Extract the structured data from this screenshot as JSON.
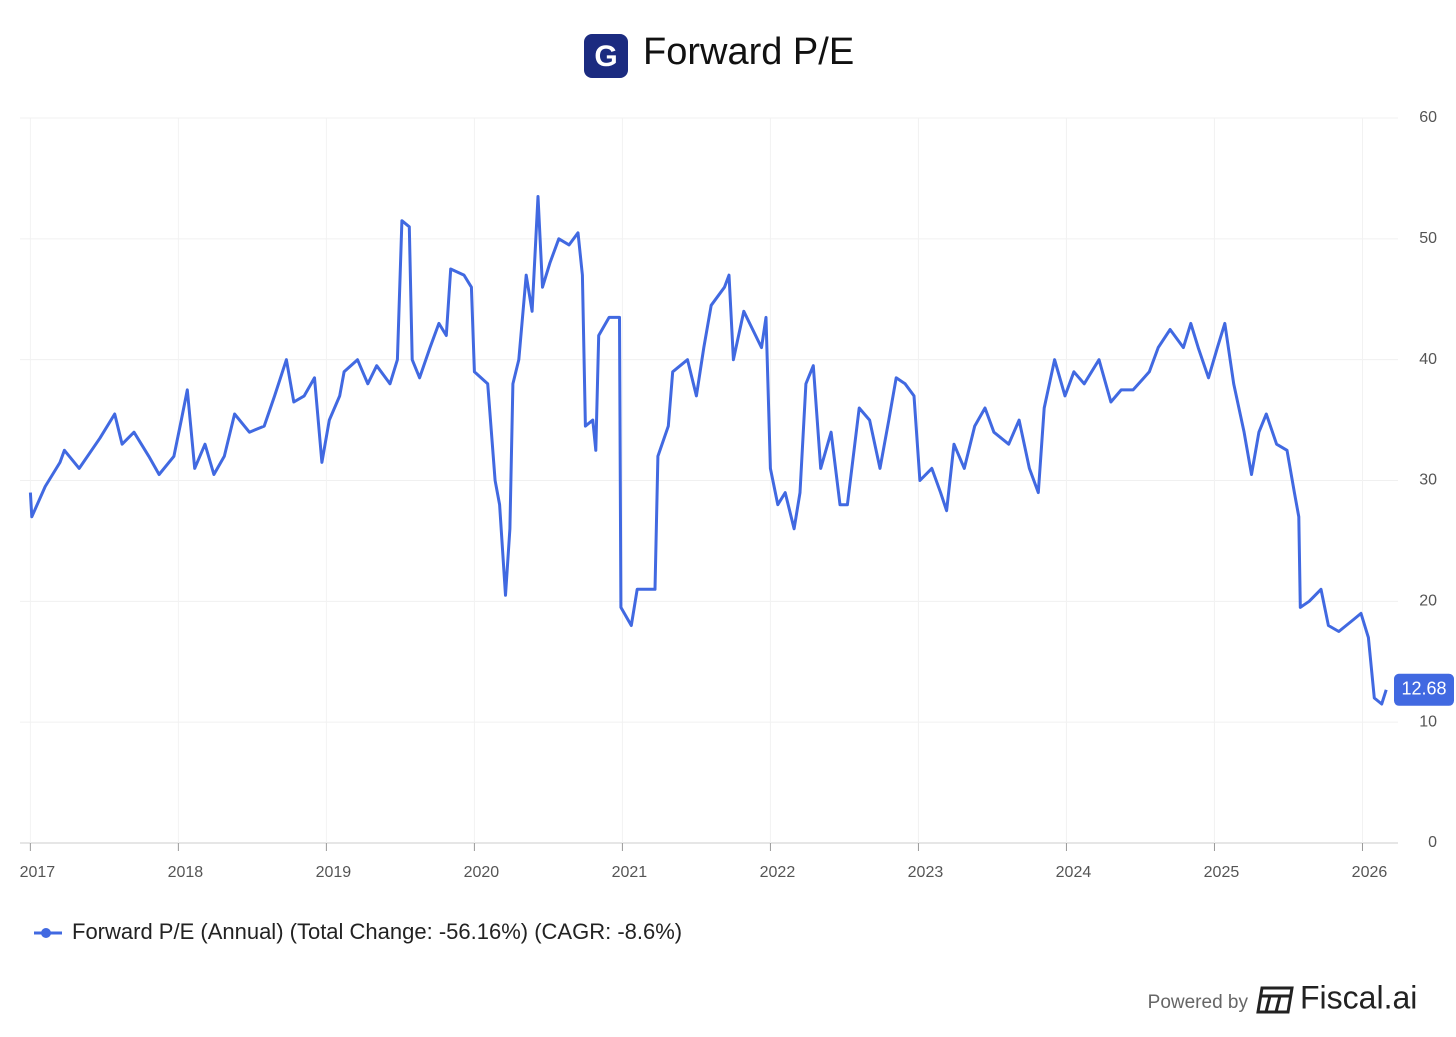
{
  "chart_data": {
    "type": "line",
    "title": "Forward P/E",
    "logo": "G",
    "x": [
      2017.0,
      2017.01,
      2017.1,
      2017.2,
      2017.23,
      2017.33,
      2017.47,
      2017.57,
      2017.62,
      2017.7,
      2017.8,
      2017.87,
      2017.97,
      2018.02,
      2018.06,
      2018.11,
      2018.18,
      2018.24,
      2018.31,
      2018.38,
      2018.48,
      2018.58,
      2018.65,
      2018.73,
      2018.78,
      2018.85,
      2018.92,
      2018.97,
      2019.02,
      2019.09,
      2019.12,
      2019.21,
      2019.28,
      2019.34,
      2019.43,
      2019.48,
      2019.51,
      2019.56,
      2019.58,
      2019.63,
      2019.7,
      2019.76,
      2019.81,
      2019.84,
      2019.93,
      2019.98,
      2020.0,
      2020.09,
      2020.14,
      2020.17,
      2020.21,
      2020.24,
      2020.26,
      2020.3,
      2020.35,
      2020.39,
      2020.43,
      2020.46,
      2020.51,
      2020.57,
      2020.64,
      2020.7,
      2020.73,
      2020.75,
      2020.8,
      2020.82,
      2020.84,
      2020.91,
      2020.98,
      2020.99,
      2021.06,
      2021.1,
      2021.22,
      2021.24,
      2021.31,
      2021.34,
      2021.44,
      2021.5,
      2021.55,
      2021.6,
      2021.69,
      2021.72,
      2021.75,
      2021.82,
      2021.9,
      2021.94,
      2021.97,
      2022.0,
      2022.05,
      2022.1,
      2022.16,
      2022.2,
      2022.24,
      2022.29,
      2022.34,
      2022.41,
      2022.47,
      2022.52,
      2022.6,
      2022.67,
      2022.74,
      2022.8,
      2022.85,
      2022.91,
      2022.97,
      2023.01,
      2023.09,
      2023.15,
      2023.19,
      2023.24,
      2023.31,
      2023.38,
      2023.45,
      2023.51,
      2023.61,
      2023.68,
      2023.75,
      2023.81,
      2023.85,
      2023.92,
      2023.99,
      2024.05,
      2024.12,
      2024.22,
      2024.3,
      2024.37,
      2024.45,
      2024.56,
      2024.62,
      2024.7,
      2024.79,
      2024.84,
      2024.89,
      2024.96,
      2025.02,
      2025.07,
      2025.13,
      2025.2,
      2025.25,
      2025.3,
      2025.35,
      2025.42,
      2025.49,
      2025.54,
      2025.57,
      2025.58,
      2025.64,
      2025.72,
      2025.77,
      2025.84,
      2025.94,
      2025.99,
      2026.04,
      2026.08,
      2026.13,
      2026.16
    ],
    "series": [
      {
        "name": "Forward P/E (Annual) (Total Change: -56.16%) (CAGR: -8.6%)",
        "color": "#4169e1",
        "values": [
          29,
          27,
          29.5,
          31.5,
          32.5,
          31,
          33.5,
          35.5,
          33,
          34,
          32,
          30.5,
          32,
          35,
          37.5,
          31,
          33,
          30.5,
          32,
          35.5,
          34,
          34.5,
          37,
          40,
          36.5,
          37,
          38.5,
          31.5,
          35,
          37,
          39,
          40,
          38,
          39.5,
          38,
          40,
          51.5,
          51,
          40,
          38.5,
          41,
          43,
          42,
          47.5,
          47,
          46,
          39,
          38,
          30,
          28,
          20.5,
          26,
          38,
          40,
          47,
          44,
          53.5,
          46,
          48,
          50,
          49.5,
          50.5,
          47,
          34.5,
          35,
          32.5,
          42,
          43.5,
          43.5,
          19.5,
          18,
          21,
          21,
          32,
          34.5,
          39,
          40,
          37,
          41,
          44.5,
          46,
          47,
          40,
          44,
          42,
          41,
          43.5,
          31,
          28,
          29,
          26,
          29,
          38,
          39.5,
          31,
          34,
          28,
          28,
          36,
          35,
          31,
          35,
          38.5,
          38,
          37,
          30,
          31,
          29,
          27.5,
          33,
          31,
          34.5,
          36,
          34,
          33,
          35,
          31,
          29,
          36,
          40,
          37,
          39,
          38,
          40,
          36.5,
          37.5,
          37.5,
          39,
          41,
          42.5,
          41,
          43,
          41,
          38.5,
          41,
          43,
          38,
          34,
          30.5,
          34,
          35.5,
          33,
          32.5,
          29,
          27,
          19.5,
          20,
          21,
          18,
          17.5,
          18.5,
          19,
          17,
          12,
          11.5,
          12.68
        ]
      }
    ],
    "end_label": "12.68",
    "xlim": [
      2016.93,
      2026.24
    ],
    "xticks": [
      2017,
      2018,
      2019,
      2020,
      2021,
      2022,
      2023,
      2024,
      2025,
      2026
    ],
    "ylim": [
      0,
      60
    ],
    "yticks": [
      0,
      10,
      20,
      30,
      40,
      50,
      60
    ],
    "grid": true,
    "footer": {
      "powered_by": "Powered by",
      "brand": "Fiscal.ai"
    }
  }
}
